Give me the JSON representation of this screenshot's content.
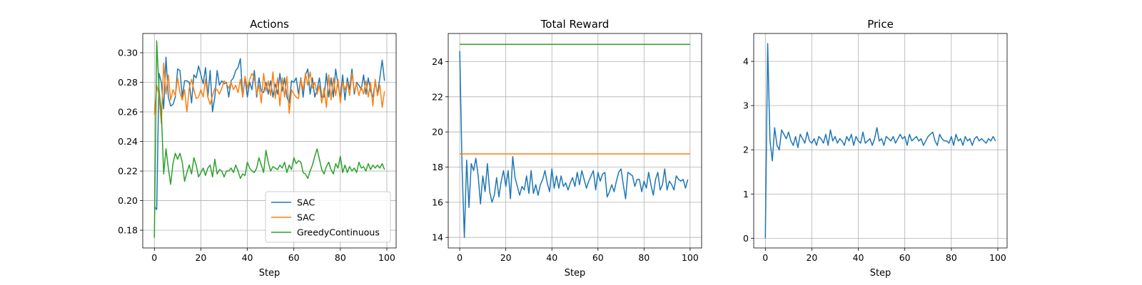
{
  "colors": {
    "blue": "#1f77b4",
    "orange": "#ff7f0e",
    "green": "#2ca02c",
    "grid": "#b0b0b0"
  },
  "chart_data": [
    {
      "type": "line",
      "title": "Actions",
      "xlabel": "Step",
      "ylabel": "",
      "xlim": [
        -5,
        104
      ],
      "ylim": [
        0.168,
        0.313
      ],
      "xticks": [
        0,
        20,
        40,
        60,
        80,
        100
      ],
      "yticks": [
        0.18,
        0.2,
        0.22,
        0.24,
        0.26,
        0.28,
        0.3
      ],
      "ytick_decimals": 2,
      "grid": true,
      "legend": "bottom-right",
      "series": [
        {
          "name": "SAC",
          "color": "#1f77b4",
          "values": [
            0.196,
            0.194,
            0.286,
            0.28,
            0.262,
            0.297,
            0.27,
            0.264,
            0.265,
            0.27,
            0.289,
            0.288,
            0.27,
            0.281,
            0.281,
            0.28,
            0.266,
            0.285,
            0.283,
            0.291,
            0.285,
            0.279,
            0.29,
            0.27,
            0.288,
            0.26,
            0.27,
            0.288,
            0.278,
            0.281,
            0.279,
            0.28,
            0.27,
            0.281,
            0.283,
            0.288,
            0.29,
            0.296,
            0.27,
            0.283,
            0.27,
            0.28,
            0.275,
            0.288,
            0.27,
            0.283,
            0.274,
            0.273,
            0.28,
            0.272,
            0.281,
            0.27,
            0.279,
            0.272,
            0.286,
            0.274,
            0.283,
            0.27,
            0.266,
            0.281,
            0.28,
            0.283,
            0.272,
            0.283,
            0.27,
            0.285,
            0.289,
            0.272,
            0.283,
            0.27,
            0.275,
            0.283,
            0.27,
            0.27,
            0.286,
            0.27,
            0.283,
            0.27,
            0.289,
            0.278,
            0.27,
            0.285,
            0.268,
            0.283,
            0.275,
            0.289,
            0.272,
            0.28,
            0.278,
            0.275,
            0.285,
            0.272,
            0.283,
            0.274,
            0.27,
            0.28,
            0.272,
            0.283,
            0.295,
            0.281
          ]
        },
        {
          "name": "SAC",
          "color": "#ff7f0e",
          "values": [
            0.258,
            0.278,
            0.271,
            0.252,
            0.293,
            0.272,
            0.285,
            0.268,
            0.275,
            0.271,
            0.283,
            0.273,
            0.268,
            0.275,
            0.26,
            0.276,
            0.282,
            0.275,
            0.269,
            0.27,
            0.275,
            0.27,
            0.282,
            0.27,
            0.265,
            0.271,
            0.276,
            0.275,
            0.272,
            0.276,
            0.281,
            0.279,
            0.276,
            0.28,
            0.275,
            0.278,
            0.273,
            0.282,
            0.27,
            0.284,
            0.276,
            0.282,
            0.286,
            0.283,
            0.272,
            0.278,
            0.266,
            0.286,
            0.274,
            0.281,
            0.271,
            0.287,
            0.269,
            0.283,
            0.264,
            0.283,
            0.27,
            0.284,
            0.259,
            0.275,
            0.272,
            0.27,
            0.269,
            0.282,
            0.275,
            0.286,
            0.278,
            0.287,
            0.276,
            0.28,
            0.272,
            0.278,
            0.266,
            0.276,
            0.263,
            0.285,
            0.268,
            0.283,
            0.271,
            0.282,
            0.266,
            0.28,
            0.275,
            0.28,
            0.271,
            0.286,
            0.274,
            0.279,
            0.271,
            0.277,
            0.272,
            0.281,
            0.27,
            0.28,
            0.264,
            0.282,
            0.271,
            0.278,
            0.263,
            0.274
          ]
        },
        {
          "name": "GreedyContinuous",
          "color": "#2ca02c",
          "values": [
            0.175,
            0.308,
            0.275,
            0.26,
            0.218,
            0.235,
            0.222,
            0.211,
            0.225,
            0.232,
            0.228,
            0.232,
            0.226,
            0.213,
            0.219,
            0.224,
            0.218,
            0.229,
            0.224,
            0.216,
            0.219,
            0.222,
            0.217,
            0.222,
            0.224,
            0.216,
            0.228,
            0.218,
            0.221,
            0.22,
            0.216,
            0.22,
            0.22,
            0.222,
            0.219,
            0.224,
            0.22,
            0.215,
            0.218,
            0.217,
            0.226,
            0.222,
            0.22,
            0.219,
            0.222,
            0.229,
            0.224,
            0.219,
            0.234,
            0.226,
            0.22,
            0.223,
            0.222,
            0.221,
            0.224,
            0.222,
            0.226,
            0.219,
            0.224,
            0.221,
            0.229,
            0.225,
            0.227,
            0.226,
            0.219,
            0.218,
            0.215,
            0.22,
            0.224,
            0.23,
            0.235,
            0.228,
            0.221,
            0.218,
            0.223,
            0.226,
            0.221,
            0.218,
            0.225,
            0.222,
            0.23,
            0.219,
            0.224,
            0.219,
            0.223,
            0.22,
            0.222,
            0.219,
            0.226,
            0.222,
            0.223,
            0.22,
            0.225,
            0.221,
            0.224,
            0.222,
            0.224,
            0.222,
            0.225,
            0.221
          ]
        }
      ]
    },
    {
      "type": "line",
      "title": "Total Reward",
      "xlabel": "Step",
      "ylabel": "",
      "xlim": [
        -5,
        105
      ],
      "ylim": [
        13.4,
        25.6
      ],
      "xticks": [
        0,
        20,
        40,
        60,
        80,
        100
      ],
      "yticks": [
        14,
        16,
        18,
        20,
        22,
        24
      ],
      "ytick_decimals": 0,
      "grid": true,
      "legend": "none",
      "series": [
        {
          "color": "#1f77b4",
          "values": [
            24.6,
            18.0,
            14.0,
            18.4,
            15.7,
            18.2,
            17.8,
            18.5,
            17.5,
            15.9,
            17.5,
            16.6,
            18.2,
            16.6,
            16.0,
            16.4,
            17.4,
            16.3,
            17.2,
            17.8,
            16.9,
            17.8,
            16.2,
            18.6,
            17.4,
            16.9,
            16.4,
            16.9,
            16.7,
            17.5,
            16.5,
            17.8,
            16.5,
            17.0,
            16.4,
            17.0,
            17.3,
            17.8,
            17.1,
            16.6,
            17.9,
            16.8,
            17.5,
            16.8,
            17.5,
            16.9,
            17.1,
            16.7,
            17.1,
            17.4,
            16.9,
            17.7,
            17.0,
            17.8,
            17.3,
            16.8,
            17.2,
            17.5,
            17.8,
            16.7,
            17.7,
            17.2,
            17.6,
            17.7,
            16.3,
            16.6,
            17.0,
            16.6,
            17.2,
            17.7,
            17.9,
            17.0,
            16.2,
            17.7,
            17.6,
            17.5,
            16.9,
            17.3,
            17.3,
            16.6,
            17.2,
            16.8,
            17.7,
            17.0,
            16.4,
            17.3,
            17.7,
            16.7,
            17.0,
            17.9,
            16.7,
            17.2,
            17.0,
            16.7,
            17.5,
            17.3,
            17.2,
            17.3,
            16.8,
            17.3
          ]
        },
        {
          "color": "#ff7f0e",
          "x": [
            0,
            100
          ],
          "values": [
            18.75,
            18.75
          ]
        },
        {
          "color": "#2ca02c",
          "x": [
            0,
            100
          ],
          "values": [
            24.98,
            24.98
          ]
        }
      ]
    },
    {
      "type": "line",
      "title": "Price",
      "xlabel": "Step",
      "ylabel": "",
      "xlim": [
        -5,
        104
      ],
      "ylim": [
        -0.22,
        4.63
      ],
      "xticks": [
        0,
        20,
        40,
        60,
        80,
        100
      ],
      "yticks": [
        0,
        1,
        2,
        3,
        4
      ],
      "ytick_decimals": 0,
      "grid": true,
      "legend": "none",
      "series": [
        {
          "color": "#1f77b4",
          "values": [
            0.0,
            4.4,
            2.2,
            1.75,
            2.5,
            2.1,
            2.0,
            2.45,
            2.35,
            2.25,
            2.4,
            2.2,
            2.1,
            2.3,
            2.05,
            2.35,
            2.25,
            2.15,
            2.4,
            2.2,
            2.15,
            2.25,
            2.1,
            2.3,
            2.25,
            2.15,
            2.35,
            2.1,
            2.45,
            2.2,
            2.3,
            2.15,
            2.25,
            2.2,
            2.1,
            2.3,
            2.2,
            2.35,
            2.1,
            2.3,
            2.2,
            2.15,
            2.4,
            2.15,
            2.2,
            2.25,
            2.1,
            2.25,
            2.5,
            2.2,
            2.25,
            2.1,
            2.3,
            2.25,
            2.2,
            2.3,
            2.15,
            2.25,
            2.35,
            2.25,
            2.3,
            2.1,
            2.35,
            2.2,
            2.25,
            2.3,
            2.2,
            2.25,
            2.1,
            2.2,
            2.3,
            2.35,
            2.4,
            2.2,
            2.1,
            2.35,
            2.25,
            2.2,
            2.2,
            2.15,
            2.3,
            2.1,
            2.35,
            2.2,
            2.25,
            2.1,
            2.3,
            2.2,
            2.25,
            2.1,
            2.25,
            2.3,
            2.2,
            2.25,
            2.2,
            2.15,
            2.25,
            2.2,
            2.3,
            2.2
          ]
        }
      ]
    }
  ]
}
